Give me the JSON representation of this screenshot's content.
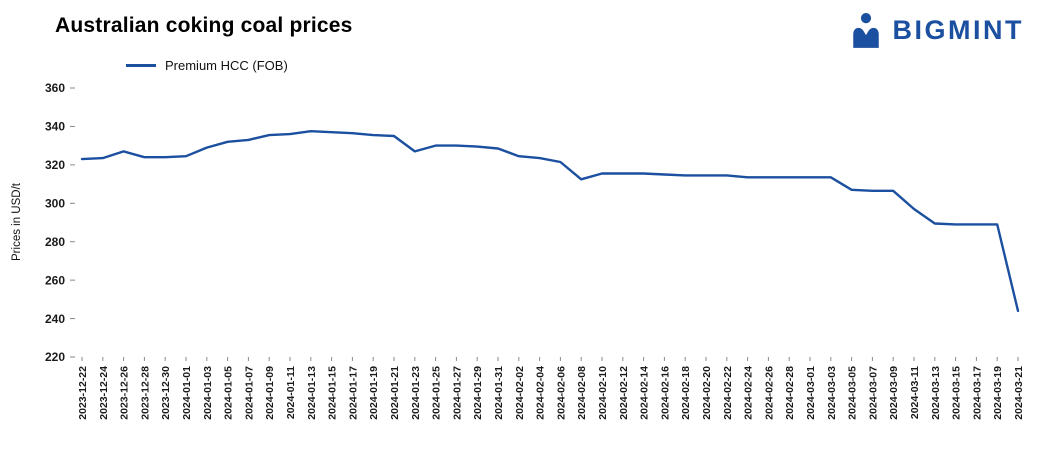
{
  "header": {
    "title": "Australian coking coal prices",
    "logo_text": "BIGMINT"
  },
  "legend": {
    "label": "Premium HCC (FOB)"
  },
  "colors": {
    "accent": "#1b4f9f",
    "tick": "#8a8a8a",
    "text": "#1a1a1a"
  },
  "chart_data": {
    "type": "line",
    "title": "Australian coking coal prices",
    "xlabel": "",
    "ylabel": "Prices in USD/t",
    "ylim": [
      220,
      360
    ],
    "yticks": [
      360,
      340,
      320,
      300,
      280,
      260,
      240,
      220
    ],
    "grid": false,
    "legend_position": "top-left",
    "line_color": "#1b4f9f",
    "categories": [
      "2023-12-22",
      "2023-12-24",
      "2023-12-26",
      "2023-12-28",
      "2023-12-30",
      "2024-01-01",
      "2024-01-03",
      "2024-01-05",
      "2024-01-07",
      "2024-01-09",
      "2024-01-11",
      "2024-01-13",
      "2024-01-15",
      "2024-01-17",
      "2024-01-19",
      "2024-01-21",
      "2024-01-23",
      "2024-01-25",
      "2024-01-27",
      "2024-01-29",
      "2024-01-31",
      "2024-02-02",
      "2024-02-04",
      "2024-02-06",
      "2024-02-08",
      "2024-02-10",
      "2024-02-12",
      "2024-02-14",
      "2024-02-16",
      "2024-02-18",
      "2024-02-20",
      "2024-02-22",
      "2024-02-24",
      "2024-02-26",
      "2024-02-28",
      "2024-03-01",
      "2024-03-03",
      "2024-03-05",
      "2024-03-07",
      "2024-03-09",
      "2024-03-11",
      "2024-03-13",
      "2024-03-15",
      "2024-03-17",
      "2024-03-19",
      "2024-03-21"
    ],
    "series": [
      {
        "name": "Premium HCC (FOB)",
        "values": [
          323,
          323.5,
          327,
          324,
          324,
          324.5,
          329,
          332,
          333,
          335.5,
          336,
          337.5,
          337,
          336.5,
          335.5,
          335,
          327,
          330,
          330,
          329.5,
          328.5,
          324.5,
          323.5,
          321.5,
          312.5,
          315.5,
          315.5,
          315.5,
          315,
          314.5,
          314.5,
          314.5,
          313.5,
          313.5,
          313.5,
          313.5,
          313.5,
          307,
          306.5,
          306.5,
          297,
          289.5,
          289,
          289,
          289,
          244
        ]
      }
    ]
  }
}
